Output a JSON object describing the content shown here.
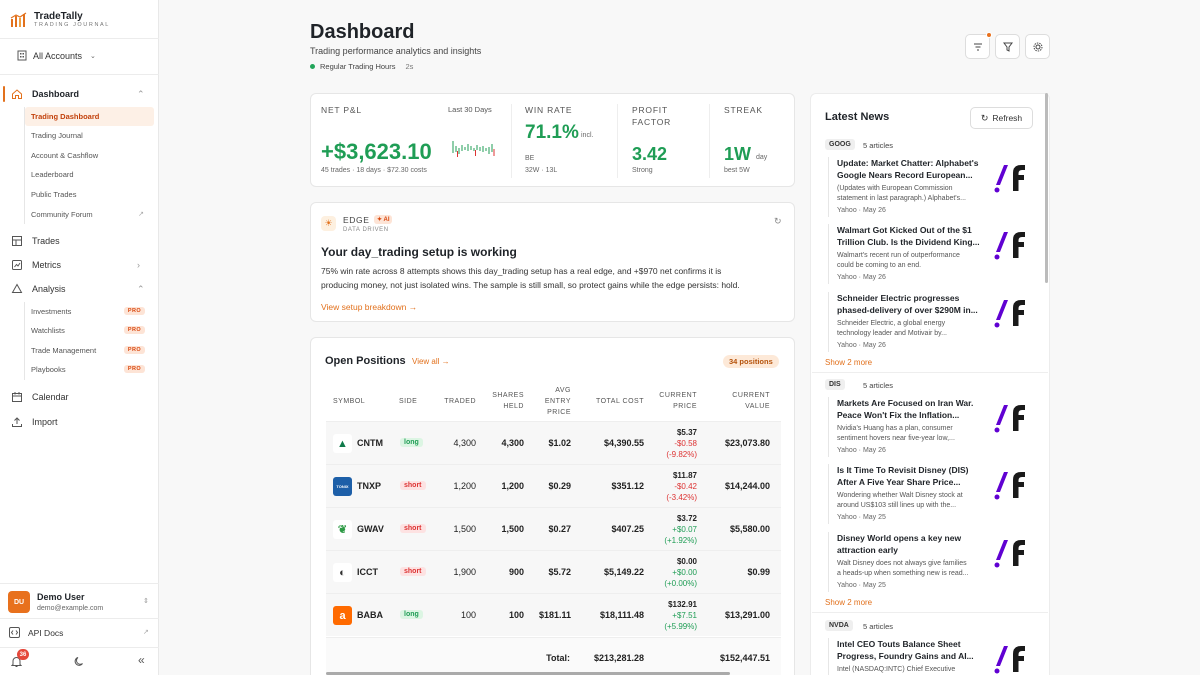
{
  "brand": {
    "name": "TradeTally",
    "tagline": "TRADING JOURNAL"
  },
  "account": {
    "label": "All Accounts"
  },
  "nav": {
    "dashboard": "Dashboard",
    "dashboard_sub": [
      "Trading Dashboard",
      "Trading Journal",
      "Account & Cashflow",
      "Leaderboard",
      "Public Trades",
      "Community Forum"
    ],
    "trades": "Trades",
    "metrics": "Metrics",
    "analysis": "Analysis",
    "analysis_sub": [
      "Investments",
      "Watchlists",
      "Trade Management",
      "Playbooks"
    ],
    "pro_badge": "PRO",
    "calendar": "Calendar",
    "import": "Import"
  },
  "user": {
    "initials": "DU",
    "name": "Demo User",
    "email": "demo@example.com"
  },
  "api_docs": "API Docs",
  "notifications": {
    "count": "36"
  },
  "header": {
    "title": "Dashboard",
    "subtitle": "Trading performance analytics and insights",
    "status": "Regular Trading Hours",
    "refresh_age": "2s"
  },
  "metrics": {
    "net_pnl": {
      "label": "NET P&L",
      "period": "Last 30 Days",
      "value": "+$3,623.10",
      "sub": "45 trades · 18 days · $72.30 costs"
    },
    "win_rate": {
      "label": "WIN RATE",
      "value": "71.1%",
      "suffix": "incl.",
      "suffix2": "BE",
      "sub": "32W · 13L"
    },
    "profit_factor": {
      "label1": "PROFIT",
      "label2": "FACTOR",
      "value": "3.42",
      "sub": "Strong"
    },
    "streak": {
      "label": "STREAK",
      "value": "1W",
      "suffix": "day",
      "sub": "best 5W"
    }
  },
  "edge": {
    "label": "EDGE",
    "ai": "AI",
    "tag": "DATA DRIVEN",
    "headline": "Your day_trading setup is working",
    "body1": "75% win rate across 8 attempts shows this day_trading setup has a real edge, and +$970 net confirms it is",
    "body2": "producing money, not just isolated wins. The sample is still small, so protect gains while the edge persists: hold.",
    "link": "View setup breakdown →"
  },
  "positions": {
    "title": "Open Positions",
    "view_all": "View all →",
    "count": "34 positions",
    "headers": {
      "symbol": "SYMBOL",
      "side": "SIDE",
      "traded": "TRADED",
      "shares1": "SHARES",
      "shares2": "HELD",
      "avg1": "AVG",
      "avg2": "ENTRY",
      "avg3": "PRICE",
      "cost": "TOTAL COST",
      "cur1": "CURRENT",
      "cur2": "PRICE",
      "val1": "CURRENT",
      "val2": "VALUE"
    },
    "rows": [
      {
        "symbol": "CNTM",
        "side": "long",
        "traded": "4,300",
        "held": "4,300",
        "avg": "$1.02",
        "cost": "$4,390.55",
        "price": "$5.37",
        "chg": "-$0.58",
        "pct": "(-9.82%)",
        "dir": "down",
        "value": "$23,073.80",
        "logo_color": "#ffffff",
        "logo_text": "▲"
      },
      {
        "symbol": "TNXP",
        "side": "short",
        "traded": "1,200",
        "held": "1,200",
        "avg": "$0.29",
        "cost": "$351.12",
        "price": "$11.87",
        "chg": "-$0.42",
        "pct": "(-3.42%)",
        "dir": "down",
        "value": "$14,244.00",
        "logo_color": "#1d5fa8",
        "logo_text": "TONIX"
      },
      {
        "symbol": "GWAV",
        "side": "short",
        "traded": "1,500",
        "held": "1,500",
        "avg": "$0.27",
        "cost": "$407.25",
        "price": "$3.72",
        "chg": "+$0.07",
        "pct": "(+1.92%)",
        "dir": "up",
        "value": "$5,580.00",
        "logo_color": "#ffffff",
        "logo_text": "❦"
      },
      {
        "symbol": "ICCT",
        "side": "short",
        "traded": "1,900",
        "held": "900",
        "avg": "$5.72",
        "cost": "$5,149.22",
        "price": "$0.00",
        "chg": "+$0.00",
        "pct": "(+0.00%)",
        "dir": "up",
        "value": "$0.99",
        "logo_color": "#ffffff",
        "logo_text": "◐"
      },
      {
        "symbol": "BABA",
        "side": "long",
        "traded": "100",
        "held": "100",
        "avg": "$181.11",
        "cost": "$18,111.48",
        "price": "$132.91",
        "chg": "+$7.51",
        "pct": "(+5.99%)",
        "dir": "up",
        "value": "$13,291.00",
        "logo_color": "#ff6a00",
        "logo_text": "a"
      }
    ],
    "total_label": "Total:",
    "total_cost": "$213,281.28",
    "total_value": "$152,447.51"
  },
  "news": {
    "title": "Latest News",
    "refresh": "Refresh",
    "show_more": "Show 2 more",
    "groups": [
      {
        "ticker": "GOOG",
        "count": "5 articles",
        "articles": [
          {
            "h1": "Update: Market Chatter: Alphabet's",
            "h2": "Google Nears Record European...",
            "d1": "(Updates with European Commission",
            "d2": "statement in last paragraph.) Alphabet's...",
            "src": "Yahoo · May 26"
          },
          {
            "h1": "Walmart Got Kicked Out of the $1",
            "h2": "Trillion Club. Is the Dividend King...",
            "d1": "Walmart's recent run of outperformance",
            "d2": "could be coming to an end.",
            "src": "Yahoo · May 26"
          },
          {
            "h1": "Schneider Electric progresses",
            "h2": "phased-delivery of over $290M in...",
            "d1": "Schneider Electric, a global energy",
            "d2": "technology leader and Motivair by...",
            "src": "Yahoo · May 26"
          }
        ]
      },
      {
        "ticker": "DIS",
        "count": "5 articles",
        "articles": [
          {
            "h1": "Markets Are Focused on Iran War.",
            "h2": "Peace Won't Fix the Inflation...",
            "d1": "Nvidia's Huang has a plan, consumer",
            "d2": "sentiment hovers near five-year low,...",
            "src": "Yahoo · May 26"
          },
          {
            "h1": "Is It Time To Revisit Disney (DIS)",
            "h2": "After A Five Year Share Price...",
            "d1": "Wondering whether Walt Disney stock at",
            "d2": "around US$103 still lines up with the...",
            "src": "Yahoo · May 25"
          },
          {
            "h1": "Disney World opens a key new",
            "h2": "attraction early",
            "d1": "Walt Disney does not always give families",
            "d2": "a heads-up when something new is read...",
            "src": "Yahoo · May 25"
          }
        ]
      },
      {
        "ticker": "NVDA",
        "count": "5 articles",
        "articles": [
          {
            "h1": "Intel CEO Touts Balance Sheet",
            "h2": "Progress, Foundry Gains and AI...",
            "d1": "Intel (NASDAQ:INTC) Chief Executive",
            "d2": "",
            "src": ""
          }
        ]
      }
    ]
  },
  "colors": {
    "accent": "#e2711d",
    "positive": "#1f9d55",
    "negative": "#d33",
    "yahoo_purple": "#6001d2"
  }
}
